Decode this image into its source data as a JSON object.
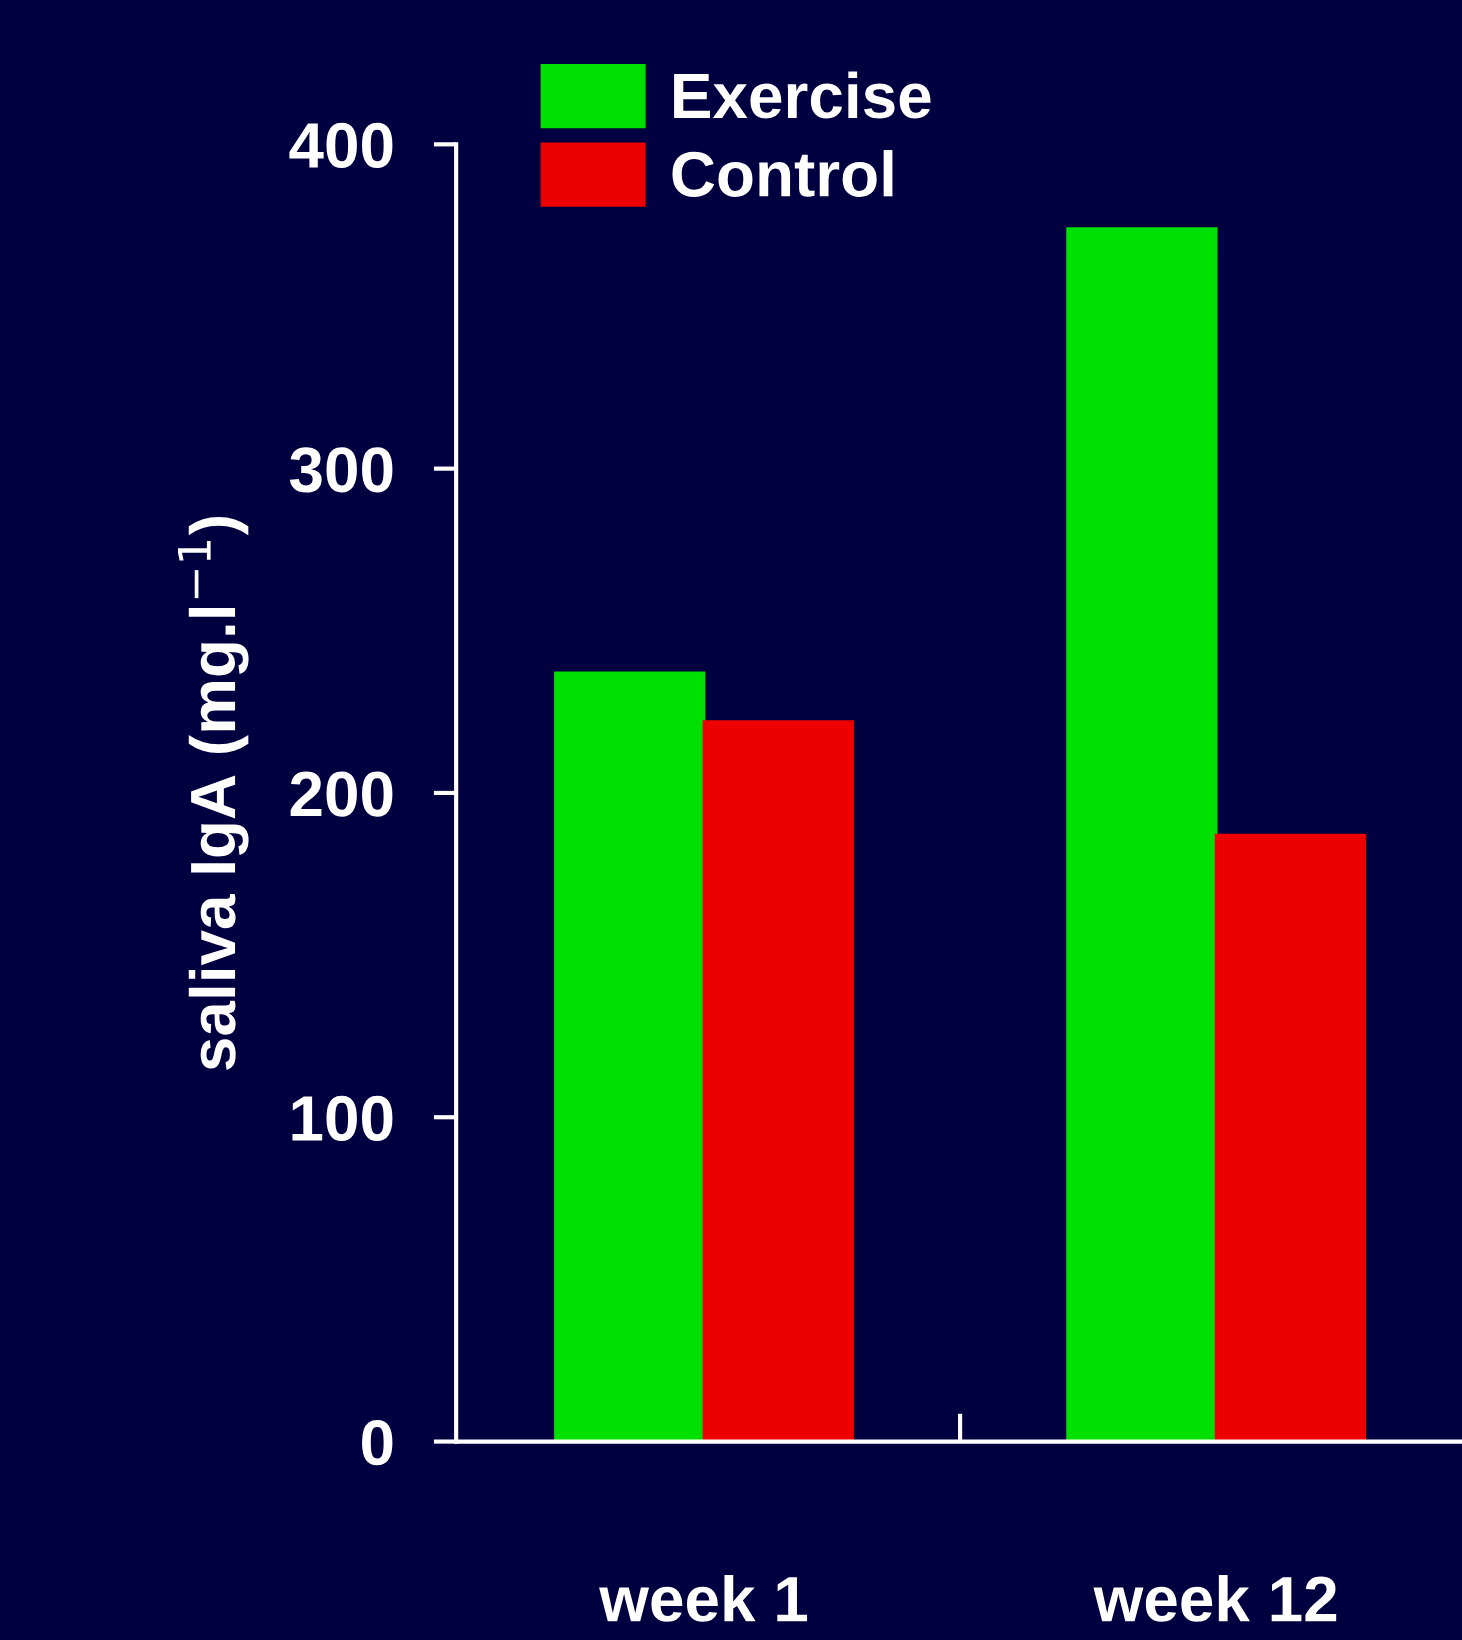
{
  "chart_data": {
    "type": "bar",
    "ylabel": "saliva IgA (mg.l$^{−1}$)",
    "categories": [
      "week 1",
      "week 12"
    ],
    "series": [
      {
        "name": "Exercise",
        "color": "#00e000",
        "values": [
          237,
          374
        ]
      },
      {
        "name": "Control",
        "color": "#ee0000",
        "values": [
          222,
          187
        ]
      }
    ],
    "ylim": [
      0,
      400
    ],
    "yticks": [
      0,
      100,
      200,
      300,
      400
    ],
    "grid": false,
    "legend": "top"
  }
}
